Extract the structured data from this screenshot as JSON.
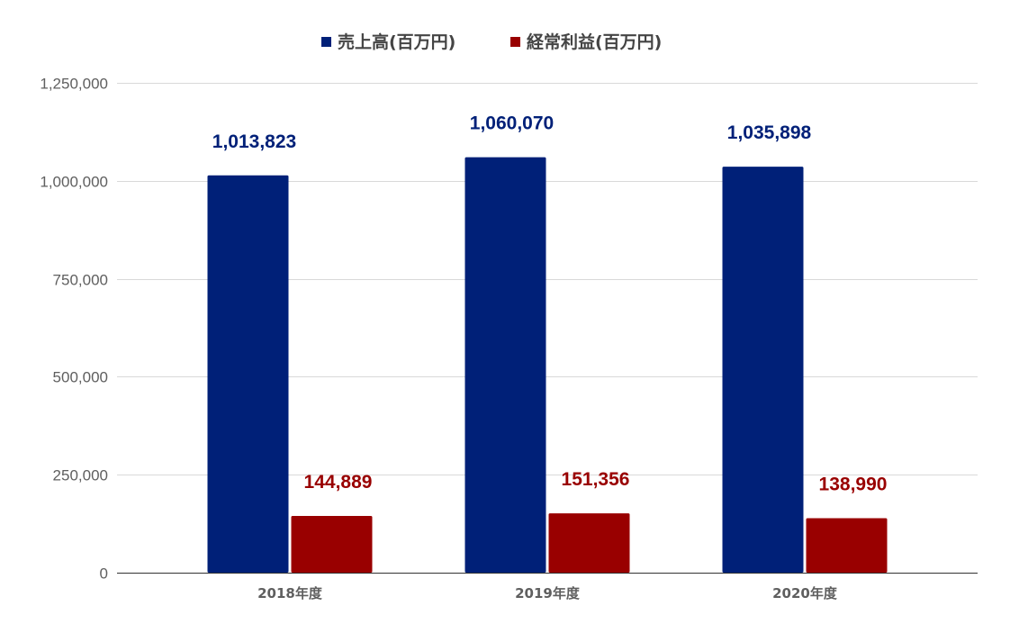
{
  "chart_data": {
    "type": "bar",
    "categories": [
      "2018年度",
      "2019年度",
      "2020年度"
    ],
    "series": [
      {
        "name": "売上高(百万円)",
        "color": "#002078",
        "values": [
          1013823,
          1060070,
          1035898
        ],
        "labels": [
          "1,013,823",
          "1,060,070",
          "1,035,898"
        ]
      },
      {
        "name": "経常利益(百万円)",
        "color": "#990000",
        "values": [
          144889,
          151356,
          138990
        ],
        "labels": [
          "144,889",
          "151,356",
          "138,990"
        ]
      }
    ],
    "ylim": [
      0,
      1250000
    ],
    "yticks": [
      0,
      250000,
      500000,
      750000,
      1000000,
      1250000
    ],
    "ytick_labels": [
      "0",
      "250,000",
      "500,000",
      "750,000",
      "1,000,000",
      "1,250,000"
    ],
    "grid": true,
    "legend_position": "top-center",
    "title": "",
    "xlabel": "",
    "ylabel": ""
  }
}
